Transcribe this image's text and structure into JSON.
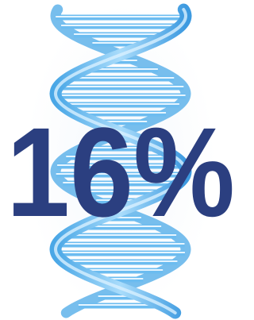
{
  "headline": "16%"
}
